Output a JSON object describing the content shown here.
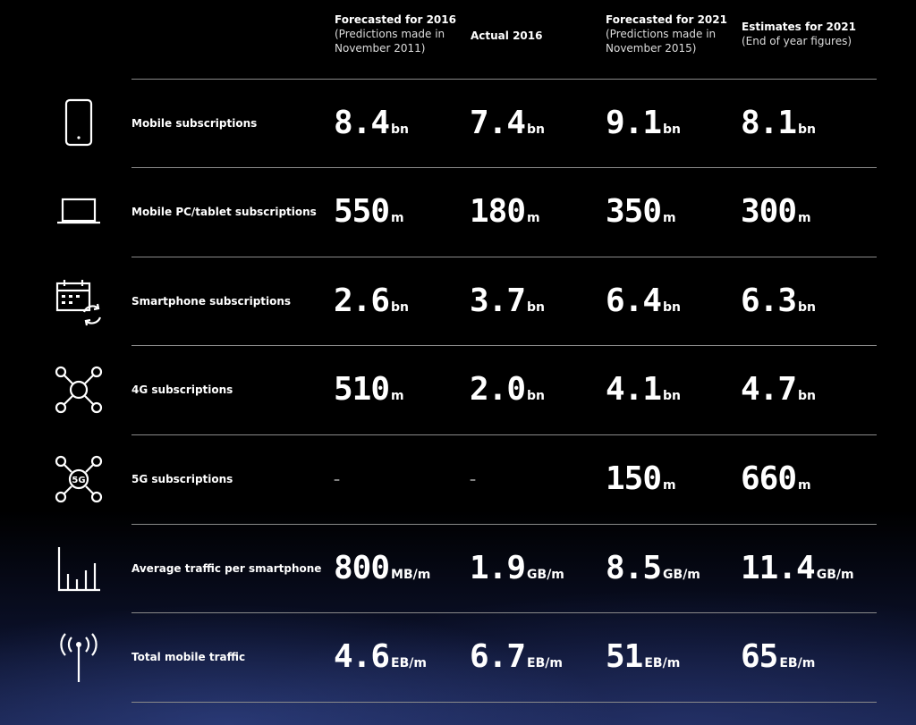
{
  "columns": [
    {
      "title": "Forecasted for 2016",
      "sub": "(Predictions made in November 2011)"
    },
    {
      "title": "Actual 2016",
      "sub": ""
    },
    {
      "title": "Forecasted for 2021",
      "sub": "(Predictions made in November 2015)"
    },
    {
      "title": "Estimates for 2021",
      "sub": "(End of year figures)"
    }
  ],
  "rows": [
    {
      "label": "Mobile subscriptions",
      "icon": "mobile-phone-icon",
      "cells": [
        {
          "num": "8.4",
          "unit": "bn"
        },
        {
          "num": "7.4",
          "unit": "bn"
        },
        {
          "num": "9.1",
          "unit": "bn"
        },
        {
          "num": "8.1",
          "unit": "bn"
        }
      ]
    },
    {
      "label": "Mobile PC/tablet subscriptions",
      "icon": "laptop-icon",
      "cells": [
        {
          "num": "550",
          "unit": "m"
        },
        {
          "num": "180",
          "unit": "m"
        },
        {
          "num": "350",
          "unit": "m"
        },
        {
          "num": "300",
          "unit": "m"
        }
      ]
    },
    {
      "label": "Smartphone subscriptions",
      "icon": "calendar-sync-icon",
      "cells": [
        {
          "num": "2.6",
          "unit": "bn"
        },
        {
          "num": "3.7",
          "unit": "bn"
        },
        {
          "num": "6.4",
          "unit": "bn"
        },
        {
          "num": "6.3",
          "unit": "bn"
        }
      ]
    },
    {
      "label": "4G subscriptions",
      "icon": "network-hub-icon",
      "cells": [
        {
          "num": "510",
          "unit": "m"
        },
        {
          "num": "2.0",
          "unit": "bn"
        },
        {
          "num": "4.1",
          "unit": "bn"
        },
        {
          "num": "4.7",
          "unit": "bn"
        }
      ]
    },
    {
      "label": "5G subscriptions",
      "icon": "5g-network-icon",
      "icon_text": "5G",
      "cells": [
        {
          "num": "–",
          "unit": ""
        },
        {
          "num": "–",
          "unit": ""
        },
        {
          "num": "150",
          "unit": "m"
        },
        {
          "num": "660",
          "unit": "m"
        }
      ]
    },
    {
      "label": "Average traffic per smartphone",
      "icon": "bar-chart-icon",
      "cells": [
        {
          "num": "800",
          "unit": "MB/m"
        },
        {
          "num": "1.9",
          "unit": "GB/m"
        },
        {
          "num": "8.5",
          "unit": "GB/m"
        },
        {
          "num": "11.4",
          "unit": "GB/m"
        }
      ]
    },
    {
      "label": "Total mobile traffic",
      "icon": "antenna-icon",
      "cells": [
        {
          "num": "4.6",
          "unit": "EB/m"
        },
        {
          "num": "6.7",
          "unit": "EB/m"
        },
        {
          "num": "51",
          "unit": "EB/m"
        },
        {
          "num": "65",
          "unit": "EB/m"
        }
      ]
    }
  ]
}
